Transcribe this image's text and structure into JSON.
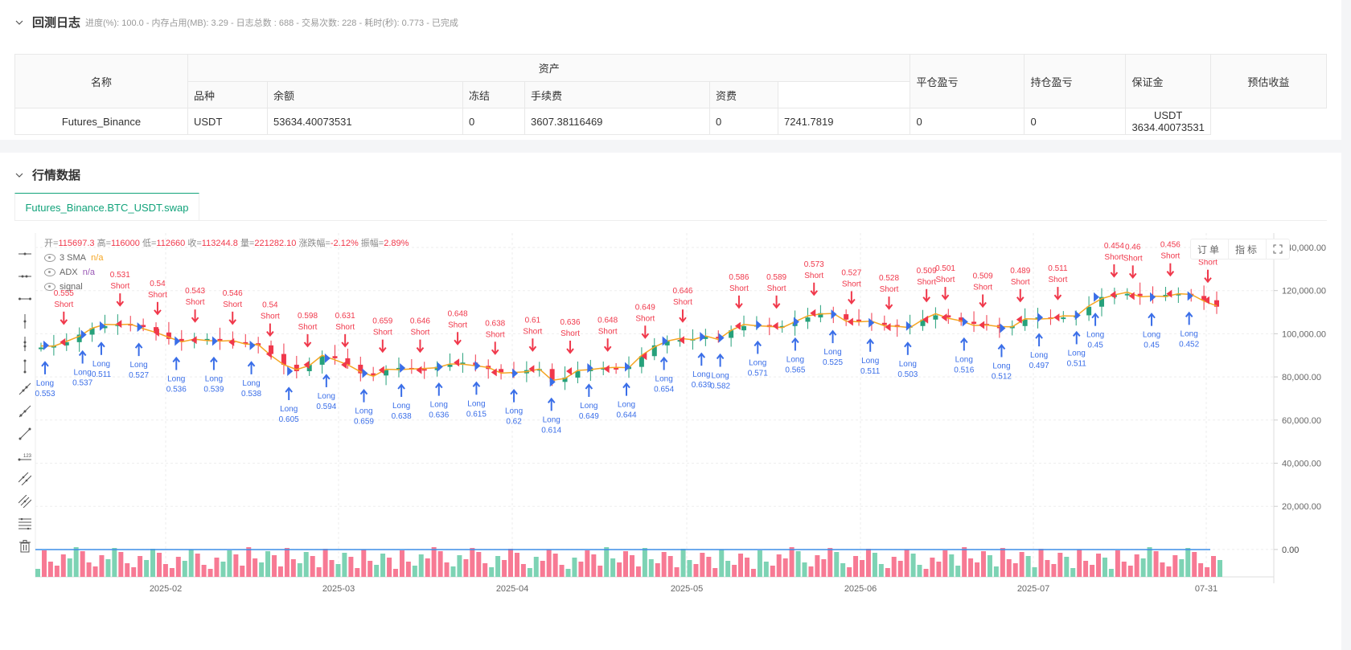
{
  "log_section": {
    "title": "回测日志",
    "meta": "进度(%): 100.0  - 内存占用(MB): 3.29 - 日志总数 : 688 - 交易次数:  228 - 耗时(秒): 0.773 - 已完成"
  },
  "assets_table": {
    "group_header": "资产",
    "headers": {
      "name": "名称",
      "symbol": "品种",
      "balance": "余额",
      "frozen": "冻结",
      "fee": "手续费",
      "funding": "资费",
      "closed_pnl": "平仓盈亏",
      "position_pnl": "持仓盈亏",
      "margin": "保证金",
      "est_profit": "预估收益"
    },
    "rows": [
      {
        "name": "Futures_Binance",
        "symbol": "USDT",
        "balance": "53634.40073531",
        "frozen": "0",
        "fee": "3607.38116469",
        "funding": "0",
        "closed_pnl": "7241.7819",
        "position_pnl": "0",
        "margin": "0",
        "est_profit": "USDT 3634.40073531"
      }
    ]
  },
  "market_section": {
    "title": "行情数据",
    "tab": "Futures_Binance.BTC_USDT.swap"
  },
  "chart_buttons": {
    "orders": "订单",
    "indicators": "指标",
    "fullscreen_icon": "expand-icon"
  },
  "ohlc": {
    "open_label": "开=",
    "open": "115697.3",
    "high_label": "高=",
    "high": "116000",
    "low_label": "低=",
    "low": "112660",
    "close_label": "收=",
    "close": "113244.8",
    "vol_label": "量=",
    "vol": "221282.10",
    "chg_label": "涨跌幅=",
    "chg": "-2.12%",
    "amp_label": "振幅=",
    "amp": "2.89%"
  },
  "indicators": [
    {
      "name": "3 SMA",
      "value": "n/a",
      "color": "#f5a623"
    },
    {
      "name": "ADX",
      "value": "n/a",
      "color": "#9b59b6"
    },
    {
      "name": "signal",
      "value": "",
      "color": "#999"
    }
  ],
  "toolbar_icons": [
    "horizontal-line-icon",
    "horizontal-ray-icon",
    "horizontal-segment-icon",
    "vertical-line-icon",
    "vertical-ray-icon",
    "vertical-segment-icon",
    "trend-line-icon",
    "ray-line-icon",
    "segment-line-icon",
    "price-line-icon",
    "parallel-channel-icon",
    "multi-parallel-icon",
    "fibonacci-icon",
    "trash-icon"
  ],
  "colors": {
    "up": "#26a17b",
    "down": "#f0384b",
    "sma": "#f5a623",
    "long": "#3a6ee8",
    "short": "#f0384b",
    "vol_up": "#7dd3b4",
    "vol_down": "#f77a94",
    "adx_line": "#3d8ee8"
  },
  "chart_data": {
    "type": "candlestick",
    "title": "Futures_Binance.BTC_USDT.swap",
    "y_axis": {
      "ticks": [
        "140,000.00",
        "120,000.00",
        "100,000.00",
        "80,000.00",
        "60,000.00",
        "40,000.00",
        "20,000.00",
        "0.00"
      ],
      "range": [
        0,
        140000
      ]
    },
    "x_axis": {
      "ticks": [
        "2025-02",
        "2025-03",
        "2025-04",
        "2025-05",
        "2025-06",
        "2025-07",
        "07-31"
      ]
    },
    "close_path": [
      94000,
      95000,
      96500,
      100000,
      103000,
      104000,
      105000,
      104500,
      103500,
      101000,
      98000,
      97000,
      97500,
      98000,
      97000,
      96500,
      96000,
      95000,
      91000,
      86000,
      83000,
      86000,
      90000,
      89000,
      86000,
      82000,
      81000,
      83500,
      84500,
      84000,
      83500,
      85000,
      86000,
      87000,
      85500,
      84000,
      82500,
      82000,
      83500,
      84000,
      78000,
      80000,
      83000,
      84500,
      84500,
      84000,
      85000,
      90000,
      95000,
      97000,
      97500,
      98000,
      99000,
      98500,
      102000,
      104000,
      104500,
      103500,
      104000,
      106000,
      108000,
      110000,
      109500,
      107000,
      106000,
      105500,
      104500,
      103500,
      104000,
      107000,
      109000,
      108000,
      106000,
      105000,
      104500,
      103000,
      104000,
      107000,
      108000,
      107500,
      108000,
      109000,
      113000,
      117500,
      118500,
      119000,
      118000,
      117500,
      118500,
      119000,
      118000,
      116000,
      113000
    ],
    "signals": [
      {
        "type": "Long",
        "value": "0.553"
      },
      {
        "type": "Short",
        "value": "0.555"
      },
      {
        "type": "Long",
        "value": "0.537"
      },
      {
        "type": "Long",
        "value": "0.511"
      },
      {
        "type": "Short",
        "value": "0.531"
      },
      {
        "type": "Long",
        "value": "0.527"
      },
      {
        "type": "Short",
        "value": "0.54"
      },
      {
        "type": "Long",
        "value": "0.536"
      },
      {
        "type": "Short",
        "value": "0.543"
      },
      {
        "type": "Long",
        "value": "0.539"
      },
      {
        "type": "Short",
        "value": "0.546"
      },
      {
        "type": "Long",
        "value": "0.538"
      },
      {
        "type": "Short",
        "value": "0.54"
      },
      {
        "type": "Long",
        "value": "0.605"
      },
      {
        "type": "Short",
        "value": "0.598"
      },
      {
        "type": "Long",
        "value": "0.594"
      },
      {
        "type": "Short",
        "value": "0.631"
      },
      {
        "type": "Long",
        "value": "0.659"
      },
      {
        "type": "Short",
        "value": "0.659"
      },
      {
        "type": "Long",
        "value": "0.638"
      },
      {
        "type": "Short",
        "value": "0.646"
      },
      {
        "type": "Long",
        "value": "0.636"
      },
      {
        "type": "Short",
        "value": "0.648"
      },
      {
        "type": "Long",
        "value": "0.615"
      },
      {
        "type": "Short",
        "value": "0.638"
      },
      {
        "type": "Long",
        "value": "0.62"
      },
      {
        "type": "Short",
        "value": "0.61"
      },
      {
        "type": "Long",
        "value": "0.614"
      },
      {
        "type": "Short",
        "value": "0.636"
      },
      {
        "type": "Long",
        "value": "0.649"
      },
      {
        "type": "Short",
        "value": "0.648"
      },
      {
        "type": "Long",
        "value": "0.644"
      },
      {
        "type": "Short",
        "value": "0.649"
      },
      {
        "type": "Long",
        "value": "0.654"
      },
      {
        "type": "Short",
        "value": "0.646"
      },
      {
        "type": "Long",
        "value": "0.639"
      },
      {
        "type": "Long",
        "value": "0.582"
      },
      {
        "type": "Short",
        "value": "0.586"
      },
      {
        "type": "Long",
        "value": "0.571"
      },
      {
        "type": "Short",
        "value": "0.589"
      },
      {
        "type": "Long",
        "value": "0.565"
      },
      {
        "type": "Short",
        "value": "0.573"
      },
      {
        "type": "Long",
        "value": "0.525"
      },
      {
        "type": "Short",
        "value": "0.527"
      },
      {
        "type": "Long",
        "value": "0.511"
      },
      {
        "type": "Short",
        "value": "0.528"
      },
      {
        "type": "Long",
        "value": "0.503"
      },
      {
        "type": "Short",
        "value": "0.509"
      },
      {
        "type": "Short",
        "value": "0.501"
      },
      {
        "type": "Long",
        "value": "0.516"
      },
      {
        "type": "Short",
        "value": "0.509"
      },
      {
        "type": "Long",
        "value": "0.512"
      },
      {
        "type": "Short",
        "value": "0.489"
      },
      {
        "type": "Long",
        "value": "0.497"
      },
      {
        "type": "Short",
        "value": "0.511"
      },
      {
        "type": "Long",
        "value": "0.511"
      },
      {
        "type": "Long",
        "value": "0.45"
      },
      {
        "type": "Short",
        "value": "0.454"
      },
      {
        "type": "Short",
        "value": "0.46"
      },
      {
        "type": "Long",
        "value": "0.45"
      },
      {
        "type": "Short",
        "value": "0.456"
      },
      {
        "type": "Long",
        "value": "0.452"
      },
      {
        "type": "Short",
        "value": "0.458"
      }
    ],
    "legend": [
      "3 SMA",
      "ADX",
      "signal"
    ],
    "volume_zero_label": "0.00"
  }
}
